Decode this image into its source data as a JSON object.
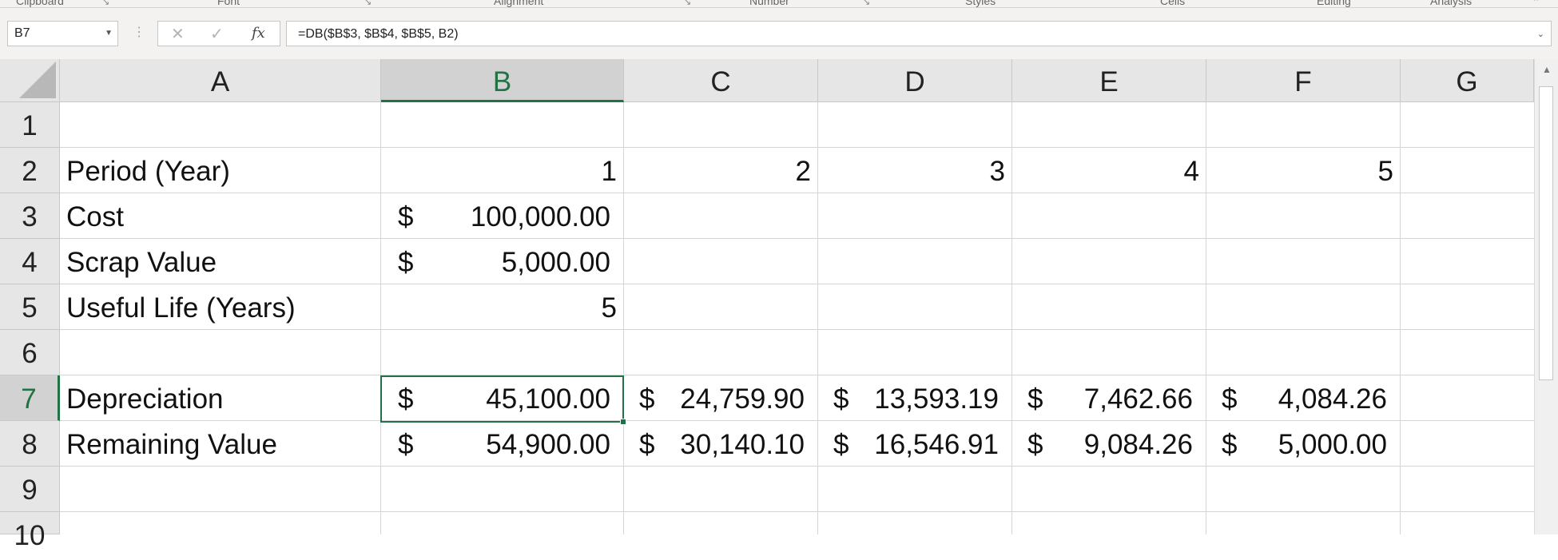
{
  "ribbon": {
    "groups": [
      "Clipboard",
      "Font",
      "Alignment",
      "Number",
      "Styles",
      "Cells",
      "Editing",
      "Analysis"
    ]
  },
  "formula_bar": {
    "name_box": "B7",
    "formula": "=DB($B$3, $B$4, $B$5, B2)",
    "cancel_icon": "✕",
    "enter_icon": "✓",
    "fx_label": "fx"
  },
  "sheet": {
    "columns": [
      "A",
      "B",
      "C",
      "D",
      "E",
      "F",
      "G"
    ],
    "rows": [
      "1",
      "2",
      "3",
      "4",
      "5",
      "6",
      "7",
      "8",
      "9",
      "10"
    ],
    "selected_cell": "B7",
    "cells": {
      "A2": "Period (Year)",
      "B2": "1",
      "C2": "2",
      "D2": "3",
      "E2": "4",
      "F2": "5",
      "A3": "Cost",
      "B3": {
        "cur": "$",
        "amt": "100,000.00"
      },
      "A4": "Scrap Value",
      "B4": {
        "cur": "$",
        "amt": "5,000.00"
      },
      "A5": "Useful Life (Years)",
      "B5": "5",
      "A7": "Depreciation",
      "B7": {
        "cur": "$",
        "amt": "45,100.00"
      },
      "C7": {
        "cur": "$",
        "amt": "24,759.90"
      },
      "D7": {
        "cur": "$",
        "amt": "13,593.19"
      },
      "E7": {
        "cur": "$",
        "amt": "7,462.66"
      },
      "F7": {
        "cur": "$",
        "amt": "4,084.26"
      },
      "A8": "Remaining Value",
      "B8": {
        "cur": "$",
        "amt": "54,900.00"
      },
      "C8": {
        "cur": "$",
        "amt": "30,140.10"
      },
      "D8": {
        "cur": "$",
        "amt": "16,546.91"
      },
      "E8": {
        "cur": "$",
        "amt": "9,084.26"
      },
      "F8": {
        "cur": "$",
        "amt": "5,000.00"
      }
    }
  }
}
